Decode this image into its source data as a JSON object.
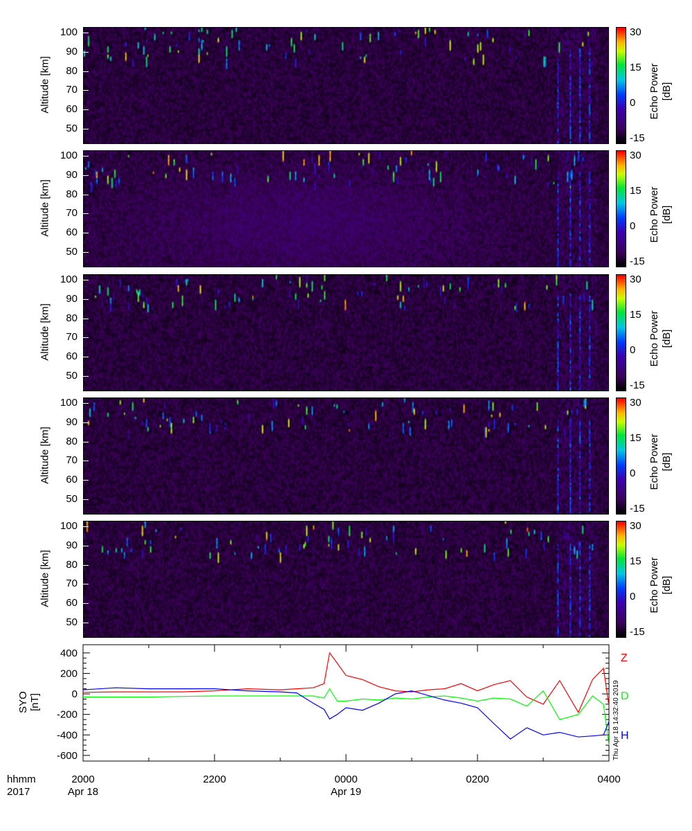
{
  "panels": {
    "ylabel": "Altitude [km]",
    "yticks": [
      "100",
      "90",
      "80",
      "70",
      "60",
      "50"
    ],
    "colorbar_label_1": "Echo Power",
    "colorbar_label_2": "[dB]",
    "colorbar_ticks": [
      "30",
      "15",
      "0",
      "-15"
    ]
  },
  "chart_data": [
    {
      "type": "heatmap",
      "panel": 1,
      "ylabel": "Altitude [km]",
      "ylim": [
        42,
        103
      ],
      "zlabel": "Echo Power [dB]",
      "zlim": [
        -17.5,
        32.5
      ],
      "colormap": "black-purple-blue-cyan-green-yellow-red"
    },
    {
      "type": "heatmap",
      "panel": 2,
      "ylabel": "Altitude [km]",
      "ylim": [
        42,
        103
      ],
      "zlabel": "Echo Power [dB]",
      "zlim": [
        -17.5,
        32.5
      ]
    },
    {
      "type": "heatmap",
      "panel": 3,
      "ylabel": "Altitude [km]",
      "ylim": [
        42,
        103
      ],
      "zlabel": "Echo Power [dB]",
      "zlim": [
        -17.5,
        32.5
      ]
    },
    {
      "type": "heatmap",
      "panel": 4,
      "ylabel": "Altitude [km]",
      "ylim": [
        42,
        103
      ],
      "zlabel": "Echo Power [dB]",
      "zlim": [
        -17.5,
        32.5
      ]
    },
    {
      "type": "heatmap",
      "panel": 5,
      "ylabel": "Altitude [km]",
      "ylim": [
        42,
        103
      ],
      "zlabel": "Echo Power [dB]",
      "zlim": [
        -17.5,
        32.5
      ]
    },
    {
      "type": "line",
      "ylabel_1": "SYO",
      "ylabel_2": "[nT]",
      "ylim": [
        -655,
        480
      ],
      "yticks": [
        "400",
        "200",
        "0",
        "-200",
        "-400",
        "-600"
      ],
      "x": [
        "20:00",
        "20:30",
        "21:00",
        "21:30",
        "22:00",
        "22:30",
        "23:00",
        "23:15",
        "23:30",
        "23:40",
        "23:45",
        "23:52",
        "00:00",
        "00:15",
        "00:30",
        "00:45",
        "01:00",
        "01:15",
        "01:30",
        "01:45",
        "02:00",
        "02:15",
        "02:30",
        "02:45",
        "03:00",
        "03:15",
        "03:32",
        "03:45",
        "03:55",
        "04:00"
      ],
      "series": [
        {
          "name": "Z",
          "color": "#ff0000",
          "values": [
            15,
            20,
            20,
            20,
            30,
            50,
            40,
            50,
            60,
            100,
            400,
            300,
            180,
            140,
            70,
            30,
            20,
            40,
            50,
            100,
            30,
            90,
            130,
            -30,
            -100,
            130,
            -180,
            140,
            250,
            -120
          ]
        },
        {
          "name": "D",
          "color": "#00ff00",
          "values": [
            -30,
            -30,
            -30,
            -25,
            -20,
            -20,
            -20,
            -20,
            -20,
            -40,
            50,
            -70,
            -70,
            -50,
            -60,
            -40,
            -50,
            -30,
            -20,
            -40,
            -70,
            -40,
            -50,
            -120,
            30,
            -250,
            -200,
            -20,
            -100,
            -500
          ]
        },
        {
          "name": "H",
          "color": "#0000ff",
          "values": [
            40,
            60,
            50,
            50,
            50,
            30,
            20,
            10,
            -90,
            -150,
            -245,
            -200,
            -135,
            -160,
            -90,
            0,
            30,
            -15,
            -60,
            -90,
            -135,
            -290,
            -440,
            -330,
            -400,
            -375,
            -420,
            -410,
            -400,
            -270
          ]
        }
      ]
    }
  ],
  "xaxis": {
    "row1_label": "hhmm",
    "row2_label": "2017",
    "ticks": [
      "2000",
      "2200",
      "0000",
      "0200",
      "0400"
    ],
    "dates": [
      "Apr 18",
      "Apr 19"
    ]
  },
  "timestamp": "Thu Apr 18 14:32:40 2019"
}
